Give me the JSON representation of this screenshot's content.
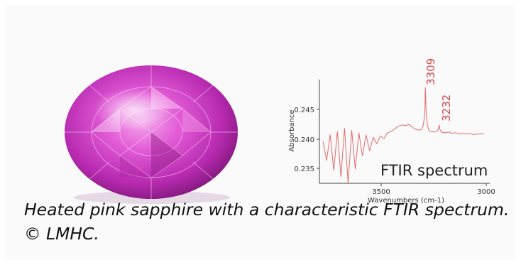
{
  "caption": {
    "line1": "Heated pink sapphire with a characteristic FTIR spectrum.",
    "line2": "© LMHC."
  },
  "spectrum": {
    "ylabel": "Absorbance",
    "xlabel": "Wavenumbers (cm-1)",
    "ytick_labels": [
      "0.245",
      "0.240",
      "0.235"
    ],
    "xtick_labels": [
      "3500",
      "3000"
    ],
    "peak_labels": [
      "3309",
      "3232"
    ],
    "inset_label": "FTIR spectrum",
    "line_color": "#e26b6b",
    "peak_label_color": "#d9454a"
  },
  "gem": {
    "color": "#d63fc8"
  },
  "chart_data": {
    "type": "line",
    "xlabel": "Wavenumbers (cm-1)",
    "ylabel": "Absorbance",
    "x_reversed": true,
    "xlim": [
      3900,
      2950
    ],
    "ylim": [
      0.233,
      0.249
    ],
    "series": [
      {
        "x": [
          3880,
          3860,
          3840,
          3820,
          3800,
          3780,
          3760,
          3740,
          3720,
          3700,
          3680,
          3660,
          3640,
          3620,
          3600,
          3580,
          3560,
          3540,
          3520,
          3500,
          3480,
          3460,
          3440,
          3420,
          3400,
          3380,
          3360,
          3340,
          3330,
          3320,
          3312,
          3309,
          3305,
          3298,
          3290,
          3280,
          3260,
          3245,
          3236,
          3232,
          3228,
          3220,
          3200,
          3180,
          3160,
          3140,
          3120,
          3100,
          3080,
          3060,
          3040,
          3020,
          3000,
          2980
        ],
        "y": [
          0.2395,
          0.2365,
          0.2405,
          0.235,
          0.241,
          0.234,
          0.2415,
          0.233,
          0.2412,
          0.2352,
          0.2408,
          0.2372,
          0.2405,
          0.238,
          0.2401,
          0.2391,
          0.2403,
          0.2399,
          0.2408,
          0.241,
          0.2414,
          0.2418,
          0.242,
          0.2419,
          0.2421,
          0.2416,
          0.2413,
          0.2412,
          0.2414,
          0.242,
          0.244,
          0.2478,
          0.244,
          0.242,
          0.2412,
          0.241,
          0.2409,
          0.241,
          0.2415,
          0.242,
          0.2413,
          0.2409,
          0.2408,
          0.2409,
          0.2407,
          0.2408,
          0.2406,
          0.2407,
          0.2406,
          0.2407,
          0.2405,
          0.2406,
          0.2406,
          0.2407
        ]
      }
    ]
  }
}
